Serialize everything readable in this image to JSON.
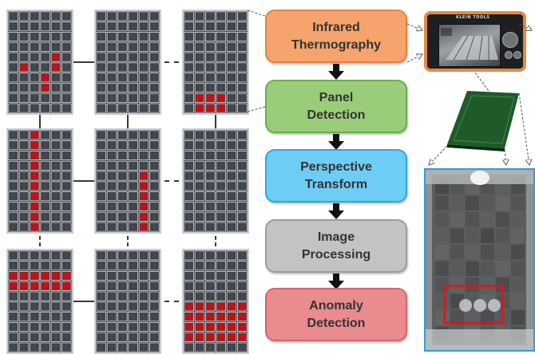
{
  "process_steps": [
    {
      "id": "infrared-thermography",
      "label": "Infrared\nThermography",
      "fill": "#f4a46c",
      "border": "#e6813f"
    },
    {
      "id": "panel-detection",
      "label": "Panel\nDetection",
      "fill": "#9acd79",
      "border": "#6aad4c"
    },
    {
      "id": "perspective-transform",
      "label": "Perspective\nTransform",
      "fill": "#6ecdf4",
      "border": "#2fa7df"
    },
    {
      "id": "image-processing",
      "label": "Image\nProcessing",
      "fill": "#c3c3c3",
      "border": "#9c9c9c"
    },
    {
      "id": "anomaly-detection",
      "label": "Anomaly\nDetection",
      "fill": "#e98b8f",
      "border": "#d4646a"
    }
  ],
  "camera": {
    "brand": "KLEIN TOOLS"
  },
  "colors": {
    "panel_cell": "#40454b",
    "panel_grid": "#d9dce0",
    "fault_cell": "#b3161c",
    "connector": "#3a3a3a",
    "anomaly_box": "#e0141b"
  },
  "panel_grid": {
    "cols": 6,
    "rows": 10
  },
  "panels": [
    {
      "id": "panel-r1c1",
      "faults": [
        [
          1,
          5
        ],
        [
          4,
          4
        ],
        [
          4,
          5
        ],
        [
          3,
          6
        ],
        [
          3,
          7
        ]
      ]
    },
    {
      "id": "panel-r1c2",
      "faults": []
    },
    {
      "id": "panel-r1c3",
      "faults": [
        [
          1,
          8
        ],
        [
          2,
          8
        ],
        [
          3,
          8
        ],
        [
          1,
          9
        ],
        [
          2,
          9
        ],
        [
          3,
          9
        ]
      ]
    },
    {
      "id": "panel-r2c1",
      "faults": [
        [
          2,
          0
        ],
        [
          2,
          1
        ],
        [
          2,
          2
        ],
        [
          2,
          3
        ],
        [
          2,
          4
        ],
        [
          2,
          5
        ],
        [
          2,
          6
        ],
        [
          2,
          7
        ],
        [
          2,
          8
        ],
        [
          2,
          9
        ]
      ]
    },
    {
      "id": "panel-r2c2",
      "faults": [
        [
          4,
          4
        ],
        [
          4,
          5
        ],
        [
          4,
          6
        ],
        [
          4,
          7
        ],
        [
          4,
          8
        ],
        [
          4,
          9
        ]
      ]
    },
    {
      "id": "panel-r2c3",
      "faults": []
    },
    {
      "id": "panel-r3c1",
      "faults": [
        [
          0,
          2
        ],
        [
          1,
          2
        ],
        [
          2,
          2
        ],
        [
          3,
          2
        ],
        [
          4,
          2
        ],
        [
          5,
          2
        ],
        [
          0,
          3
        ],
        [
          1,
          3
        ],
        [
          2,
          3
        ],
        [
          3,
          3
        ],
        [
          4,
          3
        ],
        [
          5,
          3
        ]
      ]
    },
    {
      "id": "panel-r3c2",
      "faults": []
    },
    {
      "id": "panel-r3c3",
      "faults": [
        [
          0,
          5
        ],
        [
          1,
          5
        ],
        [
          2,
          5
        ],
        [
          3,
          5
        ],
        [
          4,
          5
        ],
        [
          5,
          5
        ],
        [
          0,
          6
        ],
        [
          1,
          6
        ],
        [
          2,
          6
        ],
        [
          3,
          6
        ],
        [
          4,
          6
        ],
        [
          5,
          6
        ],
        [
          0,
          7
        ],
        [
          1,
          7
        ],
        [
          2,
          7
        ],
        [
          3,
          7
        ],
        [
          4,
          7
        ],
        [
          5,
          7
        ],
        [
          0,
          8
        ],
        [
          1,
          8
        ],
        [
          2,
          8
        ],
        [
          3,
          8
        ],
        [
          4,
          8
        ],
        [
          5,
          8
        ]
      ]
    }
  ]
}
